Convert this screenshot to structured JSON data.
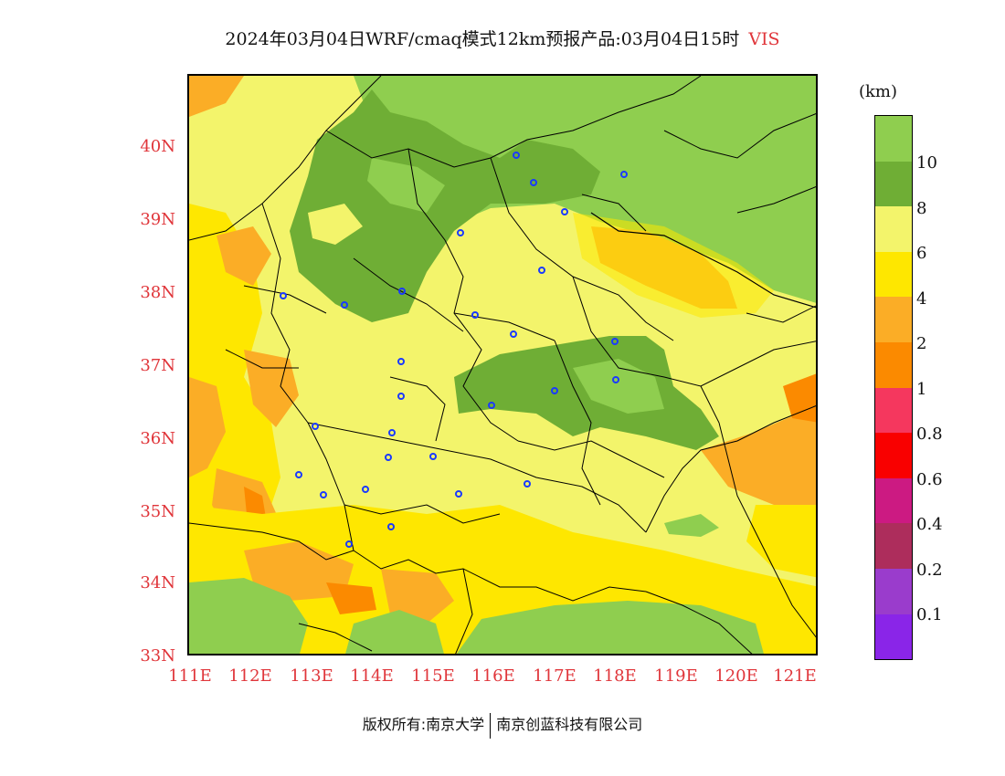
{
  "title": {
    "main": "2024年03月04日WRF/cmaq模式12km预报产品:03月04日15时",
    "variable": "VIS",
    "variable_color": "#e0353a"
  },
  "axes": {
    "lat_labels": [
      "40N",
      "39N",
      "38N",
      "37N",
      "36N",
      "35N",
      "34N",
      "33N"
    ],
    "lon_labels": [
      "111E",
      "112E",
      "113E",
      "114E",
      "115E",
      "116E",
      "117E",
      "118E",
      "119E",
      "120E",
      "121E"
    ],
    "label_color": "#e0353a"
  },
  "legend": {
    "unit": "(km)",
    "labels": [
      "10",
      "8",
      "6",
      "4",
      "2",
      "1",
      "0.8",
      "0.6",
      "0.4",
      "0.2",
      "0.1"
    ],
    "colors": [
      "#8fce4f",
      "#6fae35",
      "#f3f46b",
      "#fee700",
      "#fbad26",
      "#fb8a00",
      "#f5375e",
      "#f90000",
      "#cc1a82",
      "#ad2d5c",
      "#9a3ccc",
      "#8a25e8"
    ]
  },
  "footer": {
    "copyright": "版权所有:南京大学",
    "company": "南京创蓝科技有限公司"
  },
  "map": {
    "colors": {
      "vis_gt10": "#8fce4f",
      "vis_8_10": "#6fae35",
      "vis_6_8": "#f3f46b",
      "vis_4_6": "#fee700",
      "vis_2_4": "#fbad26",
      "vis_1_2": "#fb8a00",
      "city_marker": "#1a3aff",
      "boundary": "#000000"
    }
  }
}
